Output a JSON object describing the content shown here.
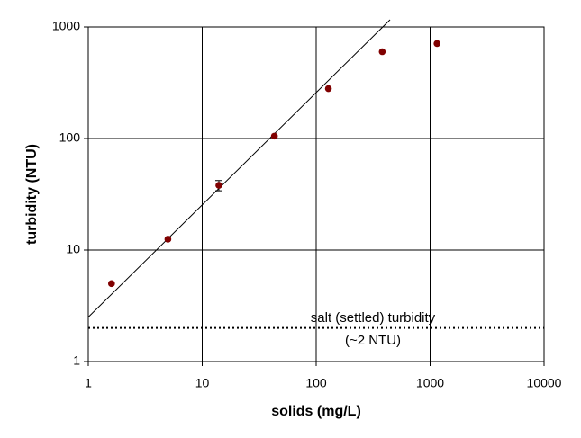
{
  "chart_data": {
    "type": "scatter",
    "x_label": "solids (mg/L)",
    "y_label": "turbidity (NTU)",
    "x_log": true,
    "y_log": true,
    "grid": true,
    "xlim": [
      1,
      10000
    ],
    "ylim": [
      1,
      1000
    ],
    "xticks": [
      1,
      10,
      100,
      1000,
      10000
    ],
    "yticks": [
      1,
      10,
      100,
      1000
    ],
    "series": [
      {
        "color": "#800000",
        "x": [
          1.6,
          5,
          14,
          43,
          128,
          380,
          1150
        ],
        "values": [
          5,
          12.5,
          38,
          105,
          280,
          600,
          710
        ],
        "errors": [
          null,
          null,
          4,
          null,
          null,
          null,
          null
        ]
      }
    ],
    "fit_line": {
      "color": "#000000",
      "x": [
        1,
        445
      ],
      "values": [
        2.5,
        1160
      ]
    },
    "reference_line": {
      "value": 2,
      "color": "#000000",
      "label_lines": [
        "salt (settled) turbidity",
        "(~2 NTU)"
      ]
    }
  }
}
